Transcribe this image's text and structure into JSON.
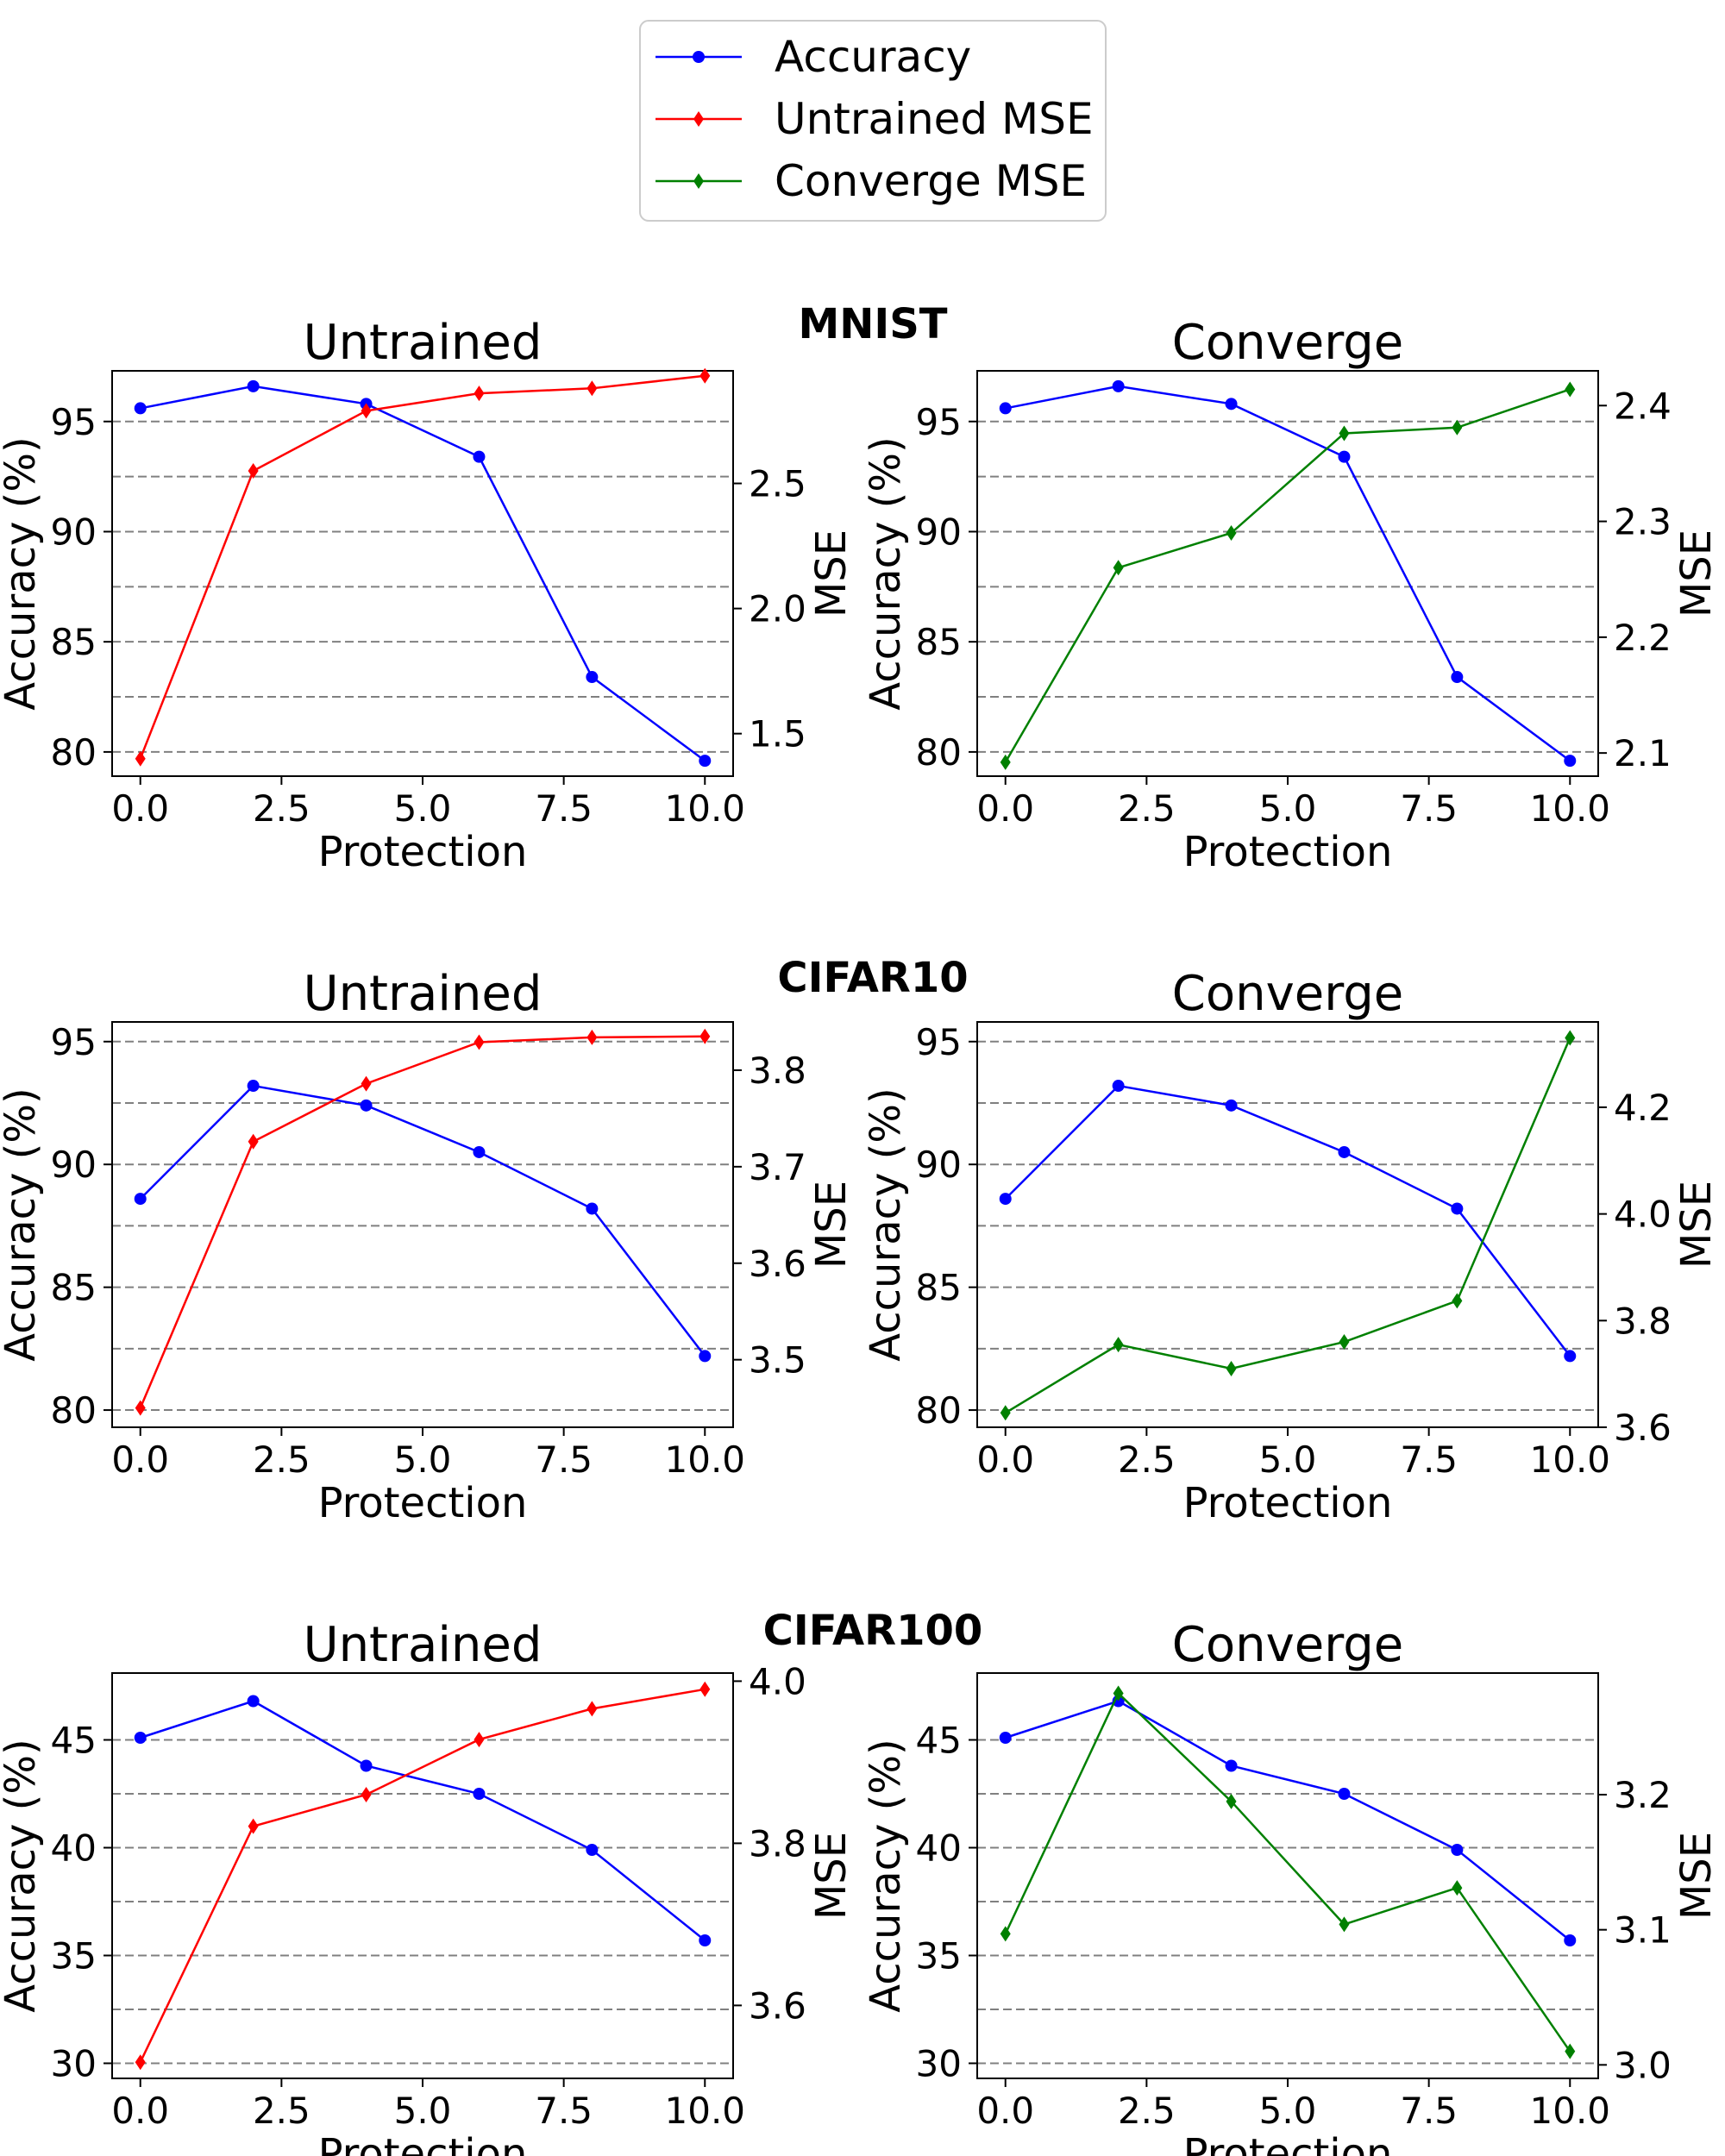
{
  "legend": {
    "items": [
      {
        "label": "Accuracy",
        "color": "#0000ff",
        "marker": "circle"
      },
      {
        "label": "Untrained MSE",
        "color": "#ff0000",
        "marker": "diamond"
      },
      {
        "label": "Converge MSE",
        "color": "#008000",
        "marker": "diamond"
      }
    ]
  },
  "datasets": [
    {
      "name": "MNIST"
    },
    {
      "name": "CIFAR10"
    },
    {
      "name": "CIFAR100"
    }
  ],
  "chart_data": [
    {
      "type": "line",
      "dataset": "MNIST",
      "title": "Untrained",
      "xlabel": "Protection",
      "ylabel": "Accuracy (%)",
      "y2label": "MSE",
      "grid": "horizontal dashed",
      "x": [
        0,
        2,
        4,
        6,
        8,
        10
      ],
      "xlim": [
        -0.5,
        10.5
      ],
      "xticks": [
        "0.0",
        "2.5",
        "5.0",
        "7.5",
        "10.0"
      ],
      "xtick_values": [
        0,
        2.5,
        5,
        7.5,
        10
      ],
      "ylim": [
        78.9,
        97.3
      ],
      "yticks": [
        "80",
        "85",
        "90",
        "95"
      ],
      "ytick_values": [
        80,
        85,
        90,
        95
      ],
      "y2lim": [
        1.33,
        2.95
      ],
      "y2ticks": [
        "1.5",
        "2.0",
        "2.5"
      ],
      "y2tick_values": [
        1.5,
        2.0,
        2.5
      ],
      "grid_values": [
        80,
        82.5,
        85,
        87.5,
        90,
        92.5,
        95
      ],
      "series": [
        {
          "name": "Accuracy",
          "axis": "left",
          "color": "#0000ff",
          "marker": "circle",
          "values": [
            95.6,
            96.6,
            95.8,
            93.4,
            83.4,
            79.6
          ]
        },
        {
          "name": "Untrained MSE",
          "axis": "right",
          "color": "#ff0000",
          "marker": "diamond",
          "values": [
            1.4,
            2.55,
            2.79,
            2.86,
            2.88,
            2.93
          ]
        }
      ]
    },
    {
      "type": "line",
      "dataset": "MNIST",
      "title": "Converge",
      "xlabel": "Protection",
      "ylabel": "Accuracy (%)",
      "y2label": "MSE",
      "grid": "horizontal dashed",
      "x": [
        0,
        2,
        4,
        6,
        8,
        10
      ],
      "xlim": [
        -0.5,
        10.5
      ],
      "xticks": [
        "0.0",
        "2.5",
        "5.0",
        "7.5",
        "10.0"
      ],
      "xtick_values": [
        0,
        2.5,
        5,
        7.5,
        10
      ],
      "ylim": [
        78.9,
        97.3
      ],
      "yticks": [
        "80",
        "85",
        "90",
        "95"
      ],
      "ytick_values": [
        80,
        85,
        90,
        95
      ],
      "y2lim": [
        2.08,
        2.43
      ],
      "y2ticks": [
        "2.1",
        "2.2",
        "2.3",
        "2.4"
      ],
      "y2tick_values": [
        2.1,
        2.2,
        2.3,
        2.4
      ],
      "grid_values": [
        80,
        82.5,
        85,
        87.5,
        90,
        92.5,
        95
      ],
      "series": [
        {
          "name": "Accuracy",
          "axis": "left",
          "color": "#0000ff",
          "marker": "circle",
          "values": [
            95.6,
            96.6,
            95.8,
            93.4,
            83.4,
            79.6
          ]
        },
        {
          "name": "Converge MSE",
          "axis": "right",
          "color": "#008000",
          "marker": "diamond",
          "values": [
            2.092,
            2.26,
            2.29,
            2.376,
            2.381,
            2.414
          ]
        }
      ]
    },
    {
      "type": "line",
      "dataset": "CIFAR10",
      "title": "Untrained",
      "xlabel": "Protection",
      "ylabel": "Accuracy (%)",
      "y2label": "MSE",
      "grid": "horizontal dashed",
      "x": [
        0,
        2,
        4,
        6,
        8,
        10
      ],
      "xlim": [
        -0.5,
        10.5
      ],
      "xticks": [
        "0.0",
        "2.5",
        "5.0",
        "7.5",
        "10.0"
      ],
      "xtick_values": [
        0,
        2.5,
        5,
        7.5,
        10
      ],
      "ylim": [
        79.3,
        95.8
      ],
      "yticks": [
        "80",
        "85",
        "90",
        "95"
      ],
      "ytick_values": [
        80,
        85,
        90,
        95
      ],
      "y2lim": [
        3.43,
        3.85
      ],
      "y2ticks": [
        "3.5",
        "3.6",
        "3.7",
        "3.8"
      ],
      "y2tick_values": [
        3.5,
        3.6,
        3.7,
        3.8
      ],
      "grid_values": [
        80,
        82.5,
        85,
        87.5,
        90,
        92.5,
        95
      ],
      "series": [
        {
          "name": "Accuracy",
          "axis": "left",
          "color": "#0000ff",
          "marker": "circle",
          "values": [
            88.6,
            93.2,
            92.4,
            90.5,
            88.2,
            82.2
          ]
        },
        {
          "name": "Untrained MSE",
          "axis": "right",
          "color": "#ff0000",
          "marker": "diamond",
          "values": [
            3.45,
            3.726,
            3.786,
            3.829,
            3.834,
            3.835
          ]
        }
      ]
    },
    {
      "type": "line",
      "dataset": "CIFAR10",
      "title": "Converge",
      "xlabel": "Protection",
      "ylabel": "Accuracy (%)",
      "y2label": "MSE",
      "grid": "horizontal dashed",
      "x": [
        0,
        2,
        4,
        6,
        8,
        10
      ],
      "xlim": [
        -0.5,
        10.5
      ],
      "xticks": [
        "0.0",
        "2.5",
        "5.0",
        "7.5",
        "10.0"
      ],
      "xtick_values": [
        0,
        2.5,
        5,
        7.5,
        10
      ],
      "ylim": [
        79.3,
        95.8
      ],
      "yticks": [
        "80",
        "85",
        "90",
        "95"
      ],
      "ytick_values": [
        80,
        85,
        90,
        95
      ],
      "y2lim": [
        3.6,
        4.36
      ],
      "y2ticks": [
        "3.6",
        "3.8",
        "4.0",
        "4.2"
      ],
      "y2tick_values": [
        3.6,
        3.8,
        4.0,
        4.2
      ],
      "grid_values": [
        80,
        82.5,
        85,
        87.5,
        90,
        92.5,
        95
      ],
      "series": [
        {
          "name": "Accuracy",
          "axis": "left",
          "color": "#0000ff",
          "marker": "circle",
          "values": [
            88.6,
            93.2,
            92.4,
            90.5,
            88.2,
            82.2
          ]
        },
        {
          "name": "Converge MSE",
          "axis": "right",
          "color": "#008000",
          "marker": "diamond",
          "values": [
            3.627,
            3.755,
            3.71,
            3.76,
            3.837,
            4.33
          ]
        }
      ]
    },
    {
      "type": "line",
      "dataset": "CIFAR100",
      "title": "Untrained",
      "xlabel": "Protection",
      "ylabel": "Accuracy (%)",
      "y2label": "MSE",
      "grid": "horizontal dashed",
      "x": [
        0,
        2,
        4,
        6,
        8,
        10
      ],
      "xlim": [
        -0.5,
        10.5
      ],
      "xticks": [
        "0.0",
        "2.5",
        "5.0",
        "7.5",
        "10.0"
      ],
      "xtick_values": [
        0,
        2.5,
        5,
        7.5,
        10
      ],
      "ylim": [
        29.3,
        48.1
      ],
      "yticks": [
        "30",
        "35",
        "40",
        "45"
      ],
      "ytick_values": [
        30,
        35,
        40,
        45
      ],
      "y2lim": [
        3.51,
        4.01
      ],
      "y2ticks": [
        "3.6",
        "3.8",
        "4.0"
      ],
      "y2tick_values": [
        3.6,
        3.8,
        4.0
      ],
      "grid_values": [
        30,
        32.5,
        35,
        37.5,
        40,
        42.5,
        45
      ],
      "series": [
        {
          "name": "Accuracy",
          "axis": "left",
          "color": "#0000ff",
          "marker": "circle",
          "values": [
            45.1,
            46.8,
            43.8,
            42.5,
            39.9,
            35.7
          ]
        },
        {
          "name": "Untrained MSE",
          "axis": "right",
          "color": "#ff0000",
          "marker": "diamond",
          "values": [
            3.53,
            3.821,
            3.86,
            3.928,
            3.966,
            3.99
          ]
        }
      ]
    },
    {
      "type": "line",
      "dataset": "CIFAR100",
      "title": "Converge",
      "xlabel": "Protection",
      "ylabel": "Accuracy (%)",
      "y2label": "MSE",
      "grid": "horizontal dashed",
      "x": [
        0,
        2,
        4,
        6,
        8,
        10
      ],
      "xlim": [
        -0.5,
        10.5
      ],
      "xticks": [
        "0.0",
        "2.5",
        "5.0",
        "7.5",
        "10.0"
      ],
      "xtick_values": [
        0,
        2.5,
        5,
        7.5,
        10
      ],
      "ylim": [
        29.3,
        48.1
      ],
      "yticks": [
        "30",
        "35",
        "40",
        "45"
      ],
      "ytick_values": [
        30,
        35,
        40,
        45
      ],
      "y2lim": [
        2.99,
        3.29
      ],
      "y2ticks": [
        "3.0",
        "3.1",
        "3.2"
      ],
      "y2tick_values": [
        3.0,
        3.1,
        3.2
      ],
      "grid_values": [
        30,
        32.5,
        35,
        37.5,
        40,
        42.5,
        45
      ],
      "series": [
        {
          "name": "Accuracy",
          "axis": "left",
          "color": "#0000ff",
          "marker": "circle",
          "values": [
            45.1,
            46.8,
            43.8,
            42.5,
            39.9,
            35.7
          ]
        },
        {
          "name": "Converge MSE",
          "axis": "right",
          "color": "#008000",
          "marker": "diamond",
          "values": [
            3.097,
            3.275,
            3.195,
            3.104,
            3.131,
            3.01
          ]
        }
      ]
    }
  ]
}
